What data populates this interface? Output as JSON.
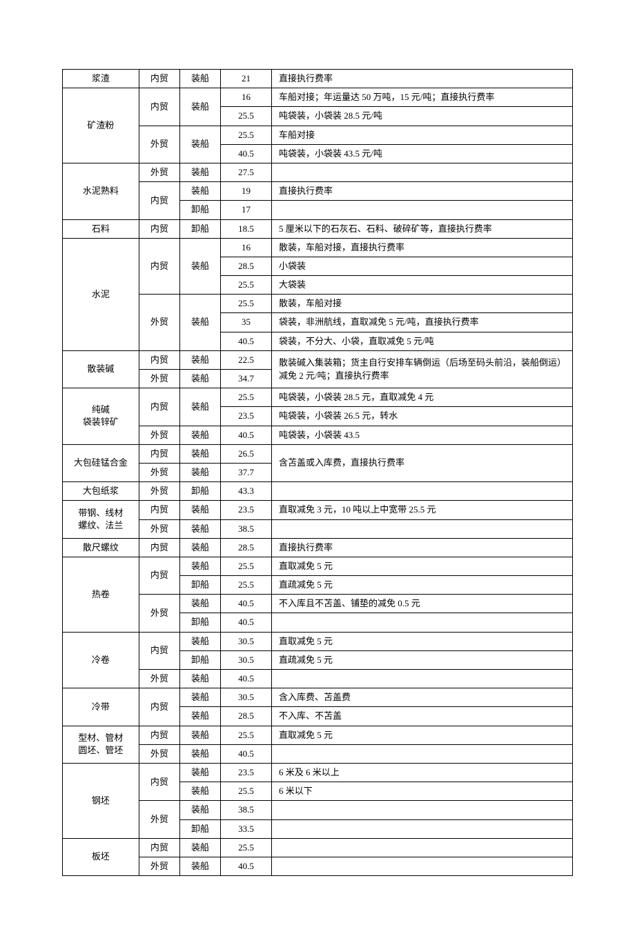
{
  "table": {
    "colWidths": [
      "15%",
      "8%",
      "8%",
      "10%",
      "59%"
    ],
    "colClasses": [
      "col-product",
      "col-trade",
      "col-op",
      "col-rate",
      "col-note"
    ],
    "border_color": "#000000",
    "background_color": "#ffffff",
    "font_size": 13,
    "font_family": "SimSun",
    "rows": [
      [
        {
          "t": "浆渣",
          "rs": 1
        },
        {
          "t": "内贸",
          "rs": 1
        },
        {
          "t": "装船",
          "rs": 1
        },
        {
          "t": "21",
          "rs": 1
        },
        {
          "t": "直接执行费率",
          "rs": 1
        }
      ],
      [
        {
          "t": "矿渣粉",
          "rs": 4
        },
        {
          "t": "内贸",
          "rs": 2
        },
        {
          "t": "装船",
          "rs": 2
        },
        {
          "t": "16",
          "rs": 1
        },
        {
          "t": "车船对接；年运量达 50 万吨，15 元/吨；直接执行费率",
          "rs": 1
        }
      ],
      [
        null,
        null,
        null,
        {
          "t": "25.5",
          "rs": 1
        },
        {
          "t": "吨袋装，小袋装 28.5 元/吨",
          "rs": 1
        }
      ],
      [
        null,
        {
          "t": "外贸",
          "rs": 2
        },
        {
          "t": "装船",
          "rs": 2
        },
        {
          "t": "25.5",
          "rs": 1
        },
        {
          "t": "车船对接",
          "rs": 1
        }
      ],
      [
        null,
        null,
        null,
        {
          "t": "40.5",
          "rs": 1
        },
        {
          "t": "吨袋装，小袋装 43.5 元/吨",
          "rs": 1
        }
      ],
      [
        {
          "t": "水泥熟料",
          "rs": 3
        },
        {
          "t": "外贸",
          "rs": 1
        },
        {
          "t": "装船",
          "rs": 1
        },
        {
          "t": "27.5",
          "rs": 1
        },
        {
          "t": "",
          "rs": 1
        }
      ],
      [
        null,
        {
          "t": "内贸",
          "rs": 2
        },
        {
          "t": "装船",
          "rs": 1
        },
        {
          "t": "19",
          "rs": 1
        },
        {
          "t": "直接执行费率",
          "rs": 1
        }
      ],
      [
        null,
        null,
        {
          "t": "卸船",
          "rs": 1
        },
        {
          "t": "17",
          "rs": 1
        },
        {
          "t": "",
          "rs": 1
        }
      ],
      [
        {
          "t": "石料",
          "rs": 1
        },
        {
          "t": "内贸",
          "rs": 1
        },
        {
          "t": "卸船",
          "rs": 1
        },
        {
          "t": "18.5",
          "rs": 1
        },
        {
          "t": "5 厘米以下的石灰石、石料、破碎矿等，直接执行费率",
          "rs": 1
        }
      ],
      [
        {
          "t": "水泥",
          "rs": 6
        },
        {
          "t": "内贸",
          "rs": 3
        },
        {
          "t": "装船",
          "rs": 3
        },
        {
          "t": "16",
          "rs": 1
        },
        {
          "t": "散装，车船对接，直接执行费率",
          "rs": 1
        }
      ],
      [
        null,
        null,
        null,
        {
          "t": "28.5",
          "rs": 1
        },
        {
          "t": "小袋装",
          "rs": 1
        }
      ],
      [
        null,
        null,
        null,
        {
          "t": "25.5",
          "rs": 1
        },
        {
          "t": "大袋装",
          "rs": 1
        }
      ],
      [
        null,
        {
          "t": "外贸",
          "rs": 3
        },
        {
          "t": "装船",
          "rs": 3
        },
        {
          "t": "25.5",
          "rs": 1
        },
        {
          "t": "散装，车船对接",
          "rs": 1
        }
      ],
      [
        null,
        null,
        null,
        {
          "t": "35",
          "rs": 1
        },
        {
          "t": "袋装，非洲航线，直取减免 5 元/吨，直接执行费率",
          "rs": 1
        }
      ],
      [
        null,
        null,
        null,
        {
          "t": "40.5",
          "rs": 1
        },
        {
          "t": "袋装，不分大、小袋，直取减免 5 元/吨",
          "rs": 1
        }
      ],
      [
        {
          "t": "散装碱",
          "rs": 2
        },
        {
          "t": "内贸",
          "rs": 1
        },
        {
          "t": "装船",
          "rs": 1
        },
        {
          "t": "22.5",
          "rs": 1
        },
        {
          "t": "散装碱入集装箱；货主自行安排车辆倒运（后场至码头前沿，装船倒运）减免 2 元/吨；直接执行费率",
          "rs": 2
        }
      ],
      [
        null,
        {
          "t": "外贸",
          "rs": 1
        },
        {
          "t": "装船",
          "rs": 1
        },
        {
          "t": "34.7",
          "rs": 1
        },
        null
      ],
      [
        {
          "t": "纯碱\n袋装锌矿",
          "rs": 3,
          "ml": true
        },
        {
          "t": "内贸",
          "rs": 2
        },
        {
          "t": "装船",
          "rs": 2
        },
        {
          "t": "25.5",
          "rs": 1
        },
        {
          "t": "吨袋装，小袋装 28.5 元，直取减免 4 元",
          "rs": 1
        }
      ],
      [
        null,
        null,
        null,
        {
          "t": "23.5",
          "rs": 1
        },
        {
          "t": "吨袋装，小袋装 26.5 元，转水",
          "rs": 1
        }
      ],
      [
        null,
        {
          "t": "外贸",
          "rs": 1
        },
        {
          "t": "装船",
          "rs": 1
        },
        {
          "t": "40.5",
          "rs": 1
        },
        {
          "t": "吨袋装，小袋装 43.5",
          "rs": 1
        }
      ],
      [
        {
          "t": "大包硅锰合金",
          "rs": 2
        },
        {
          "t": "内贸",
          "rs": 1
        },
        {
          "t": "装船",
          "rs": 1
        },
        {
          "t": "26.5",
          "rs": 1
        },
        {
          "t": "含苫盖或入库费，直接执行费率",
          "rs": 2
        }
      ],
      [
        null,
        {
          "t": "外贸",
          "rs": 1
        },
        {
          "t": "装船",
          "rs": 1
        },
        {
          "t": "37.7",
          "rs": 1
        },
        null
      ],
      [
        {
          "t": "大包纸浆",
          "rs": 1
        },
        {
          "t": "外贸",
          "rs": 1
        },
        {
          "t": "卸船",
          "rs": 1
        },
        {
          "t": "43.3",
          "rs": 1
        },
        {
          "t": "",
          "rs": 1
        }
      ],
      [
        {
          "t": "带钢、线材\n螺纹、法兰",
          "rs": 2,
          "ml": true
        },
        {
          "t": "内贸",
          "rs": 1
        },
        {
          "t": "装船",
          "rs": 1
        },
        {
          "t": "23.5",
          "rs": 1
        },
        {
          "t": "直取减免 3 元，10 吨以上中宽带 25.5 元",
          "rs": 1
        }
      ],
      [
        null,
        {
          "t": "外贸",
          "rs": 1
        },
        {
          "t": "装船",
          "rs": 1
        },
        {
          "t": "38.5",
          "rs": 1
        },
        {
          "t": "",
          "rs": 1
        }
      ],
      [
        {
          "t": "散尺螺纹",
          "rs": 1
        },
        {
          "t": "内贸",
          "rs": 1
        },
        {
          "t": "装船",
          "rs": 1
        },
        {
          "t": "28.5",
          "rs": 1
        },
        {
          "t": "直接执行费率",
          "rs": 1
        }
      ],
      [
        {
          "t": "热卷",
          "rs": 4
        },
        {
          "t": "内贸",
          "rs": 2
        },
        {
          "t": "装船",
          "rs": 1
        },
        {
          "t": "25.5",
          "rs": 1
        },
        {
          "t": "直取减免 5 元",
          "rs": 1
        }
      ],
      [
        null,
        null,
        {
          "t": "卸船",
          "rs": 1
        },
        {
          "t": "25.5",
          "rs": 1
        },
        {
          "t": "直疏减免 5 元",
          "rs": 1
        }
      ],
      [
        null,
        {
          "t": "外贸",
          "rs": 2
        },
        {
          "t": "装船",
          "rs": 1
        },
        {
          "t": "40.5",
          "rs": 1
        },
        {
          "t": "不入库且不苫盖、铺垫的减免 0.5 元",
          "rs": 1
        }
      ],
      [
        null,
        null,
        {
          "t": "卸船",
          "rs": 1
        },
        {
          "t": "40.5",
          "rs": 1
        },
        {
          "t": "",
          "rs": 1
        }
      ],
      [
        {
          "t": "冷卷",
          "rs": 3
        },
        {
          "t": "内贸",
          "rs": 2
        },
        {
          "t": "装船",
          "rs": 1
        },
        {
          "t": "30.5",
          "rs": 1
        },
        {
          "t": "直取减免 5 元",
          "rs": 1
        }
      ],
      [
        null,
        null,
        {
          "t": "卸船",
          "rs": 1
        },
        {
          "t": "30.5",
          "rs": 1
        },
        {
          "t": "直疏减免 5 元",
          "rs": 1
        }
      ],
      [
        null,
        {
          "t": "外贸",
          "rs": 1
        },
        {
          "t": "装船",
          "rs": 1
        },
        {
          "t": "40.5",
          "rs": 1
        },
        {
          "t": "",
          "rs": 1
        }
      ],
      [
        {
          "t": "冷带",
          "rs": 2
        },
        {
          "t": "内贸",
          "rs": 2
        },
        {
          "t": "装船",
          "rs": 1
        },
        {
          "t": "30.5",
          "rs": 1
        },
        {
          "t": "含入库费、苫盖费",
          "rs": 1
        }
      ],
      [
        null,
        null,
        {
          "t": "装船",
          "rs": 1
        },
        {
          "t": "28.5",
          "rs": 1
        },
        {
          "t": "不入库、不苫盖",
          "rs": 1
        }
      ],
      [
        {
          "t": "型材、管材\n圆坯、管坯",
          "rs": 2,
          "ml": true
        },
        {
          "t": "内贸",
          "rs": 1
        },
        {
          "t": "装船",
          "rs": 1
        },
        {
          "t": "25.5",
          "rs": 1
        },
        {
          "t": "直取减免 5 元",
          "rs": 1
        }
      ],
      [
        null,
        {
          "t": "外贸",
          "rs": 1
        },
        {
          "t": "装船",
          "rs": 1
        },
        {
          "t": "40.5",
          "rs": 1
        },
        {
          "t": "",
          "rs": 1
        }
      ],
      [
        {
          "t": "钢坯",
          "rs": 4
        },
        {
          "t": "内贸",
          "rs": 2
        },
        {
          "t": "装船",
          "rs": 1
        },
        {
          "t": "23.5",
          "rs": 1
        },
        {
          "t": "6 米及 6 米以上",
          "rs": 1
        }
      ],
      [
        null,
        null,
        {
          "t": "装船",
          "rs": 1
        },
        {
          "t": "25.5",
          "rs": 1
        },
        {
          "t": "6 米以下",
          "rs": 1
        }
      ],
      [
        null,
        {
          "t": "外贸",
          "rs": 2
        },
        {
          "t": "装船",
          "rs": 1
        },
        {
          "t": "38.5",
          "rs": 1
        },
        {
          "t": "",
          "rs": 1
        }
      ],
      [
        null,
        null,
        {
          "t": "卸船",
          "rs": 1
        },
        {
          "t": "33.5",
          "rs": 1
        },
        {
          "t": "",
          "rs": 1
        }
      ],
      [
        {
          "t": "板坯",
          "rs": 2
        },
        {
          "t": "内贸",
          "rs": 1
        },
        {
          "t": "装船",
          "rs": 1
        },
        {
          "t": "25.5",
          "rs": 1
        },
        {
          "t": "",
          "rs": 1
        }
      ],
      [
        null,
        {
          "t": "外贸",
          "rs": 1
        },
        {
          "t": "装船",
          "rs": 1
        },
        {
          "t": "40.5",
          "rs": 1
        },
        {
          "t": "",
          "rs": 1
        }
      ]
    ]
  }
}
